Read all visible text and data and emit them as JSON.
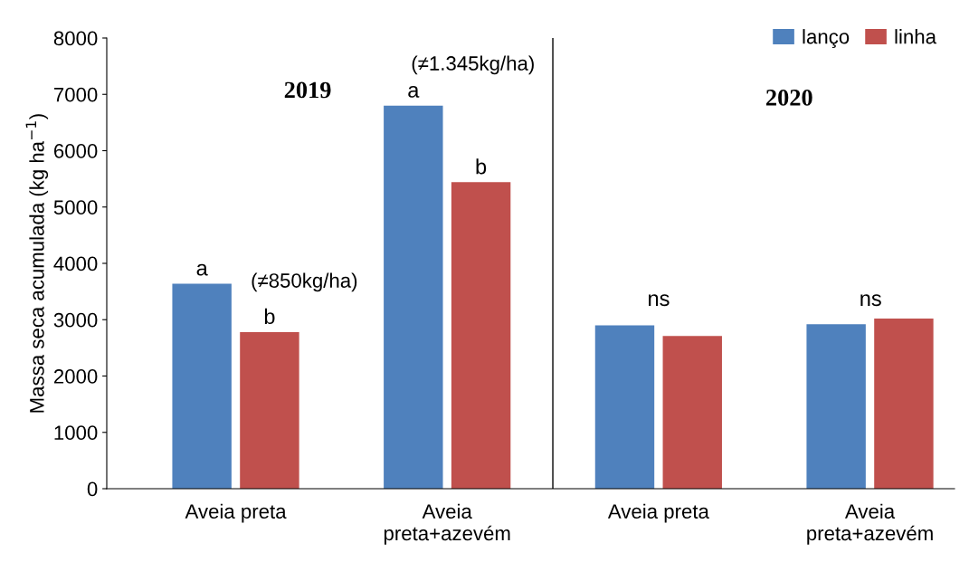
{
  "chart_data": {
    "type": "bar",
    "ylabel": "Massa seca acumulada (kg ha$^{−1}$)",
    "categories": [
      "Aveia preta",
      "Aveia\npreta+azevém",
      "Aveia preta",
      "Aveia\npreta+azevém"
    ],
    "series": [
      {
        "name": "lanço",
        "color": "#4f81bd",
        "values": [
          3640,
          6800,
          2900,
          2920
        ],
        "value_labels": [
          "a",
          "a",
          null,
          null
        ]
      },
      {
        "name": "linha",
        "color": "#c0504d",
        "values": [
          2780,
          5440,
          2710,
          3020
        ],
        "value_labels": [
          "b",
          "b",
          null,
          null
        ]
      }
    ],
    "ylim": [
      0,
      8000
    ],
    "yticks": [
      0,
      1000,
      2000,
      3000,
      4000,
      5000,
      6000,
      7000,
      8000
    ],
    "annotations": [
      "2019",
      "2020",
      "(≠850kg/ha)",
      "(≠1.345kg/ha)",
      "ns",
      "ns"
    ],
    "grid": false,
    "legend": "top right"
  }
}
